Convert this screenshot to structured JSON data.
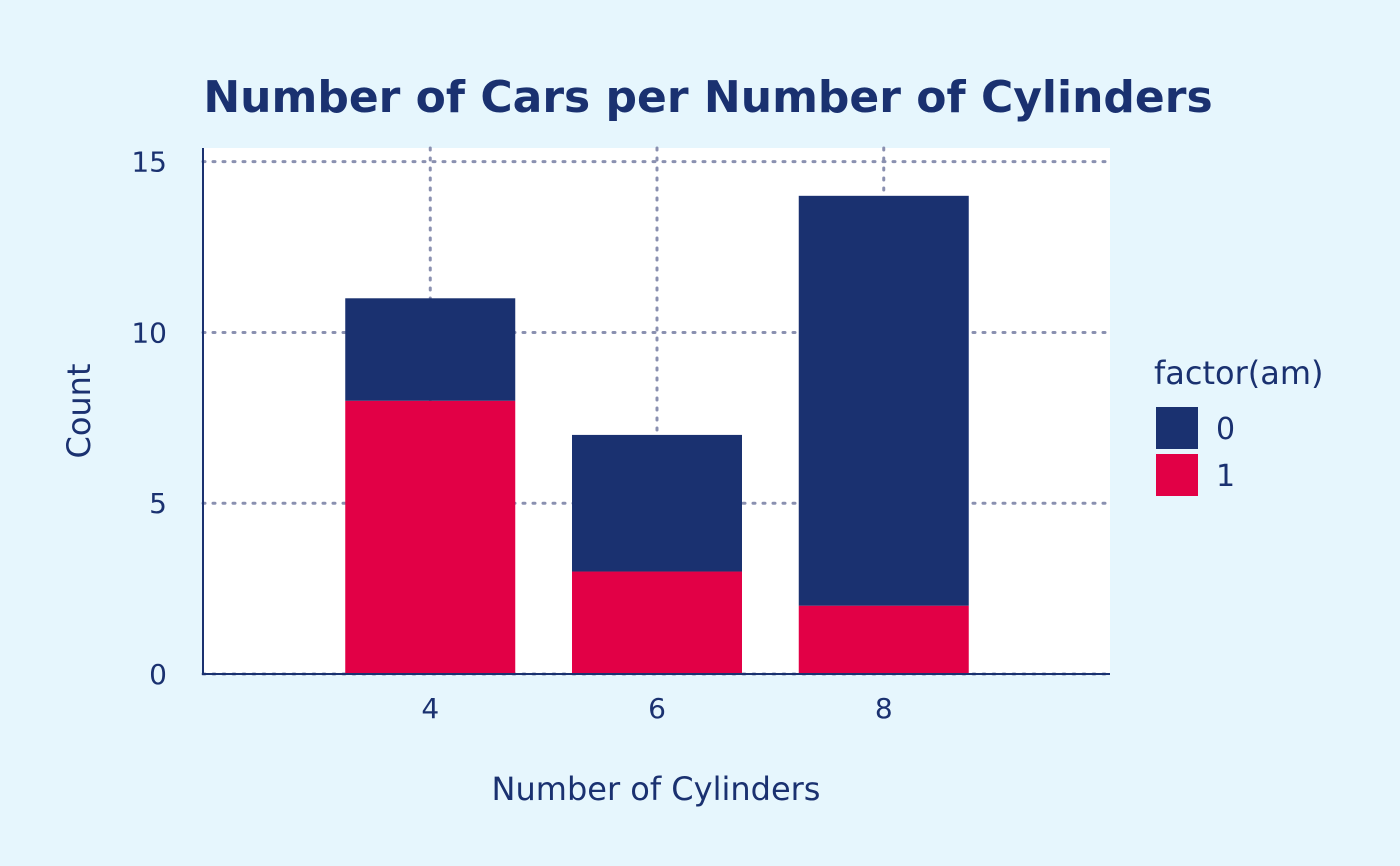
{
  "chart_data": {
    "type": "bar",
    "stacked": true,
    "title": "Number of Cars per Number of Cylinders",
    "xlabel": "Number of Cylinders",
    "ylabel": "Count",
    "categories": [
      "4",
      "6",
      "8"
    ],
    "series": [
      {
        "name": "0",
        "values": [
          3,
          4,
          12
        ],
        "color": "#1a3170"
      },
      {
        "name": "1",
        "values": [
          8,
          3,
          2
        ],
        "color": "#e20046"
      }
    ],
    "ylim": [
      0,
      15.4
    ],
    "yticks": [
      0,
      5,
      10,
      15
    ],
    "grid": true,
    "legend": {
      "title": "factor(am)",
      "position": "right"
    },
    "colors": {
      "background": "#e6f6fd",
      "panel": "#ffffff",
      "text": "#1a3170",
      "grid": "#8a90b0"
    }
  }
}
